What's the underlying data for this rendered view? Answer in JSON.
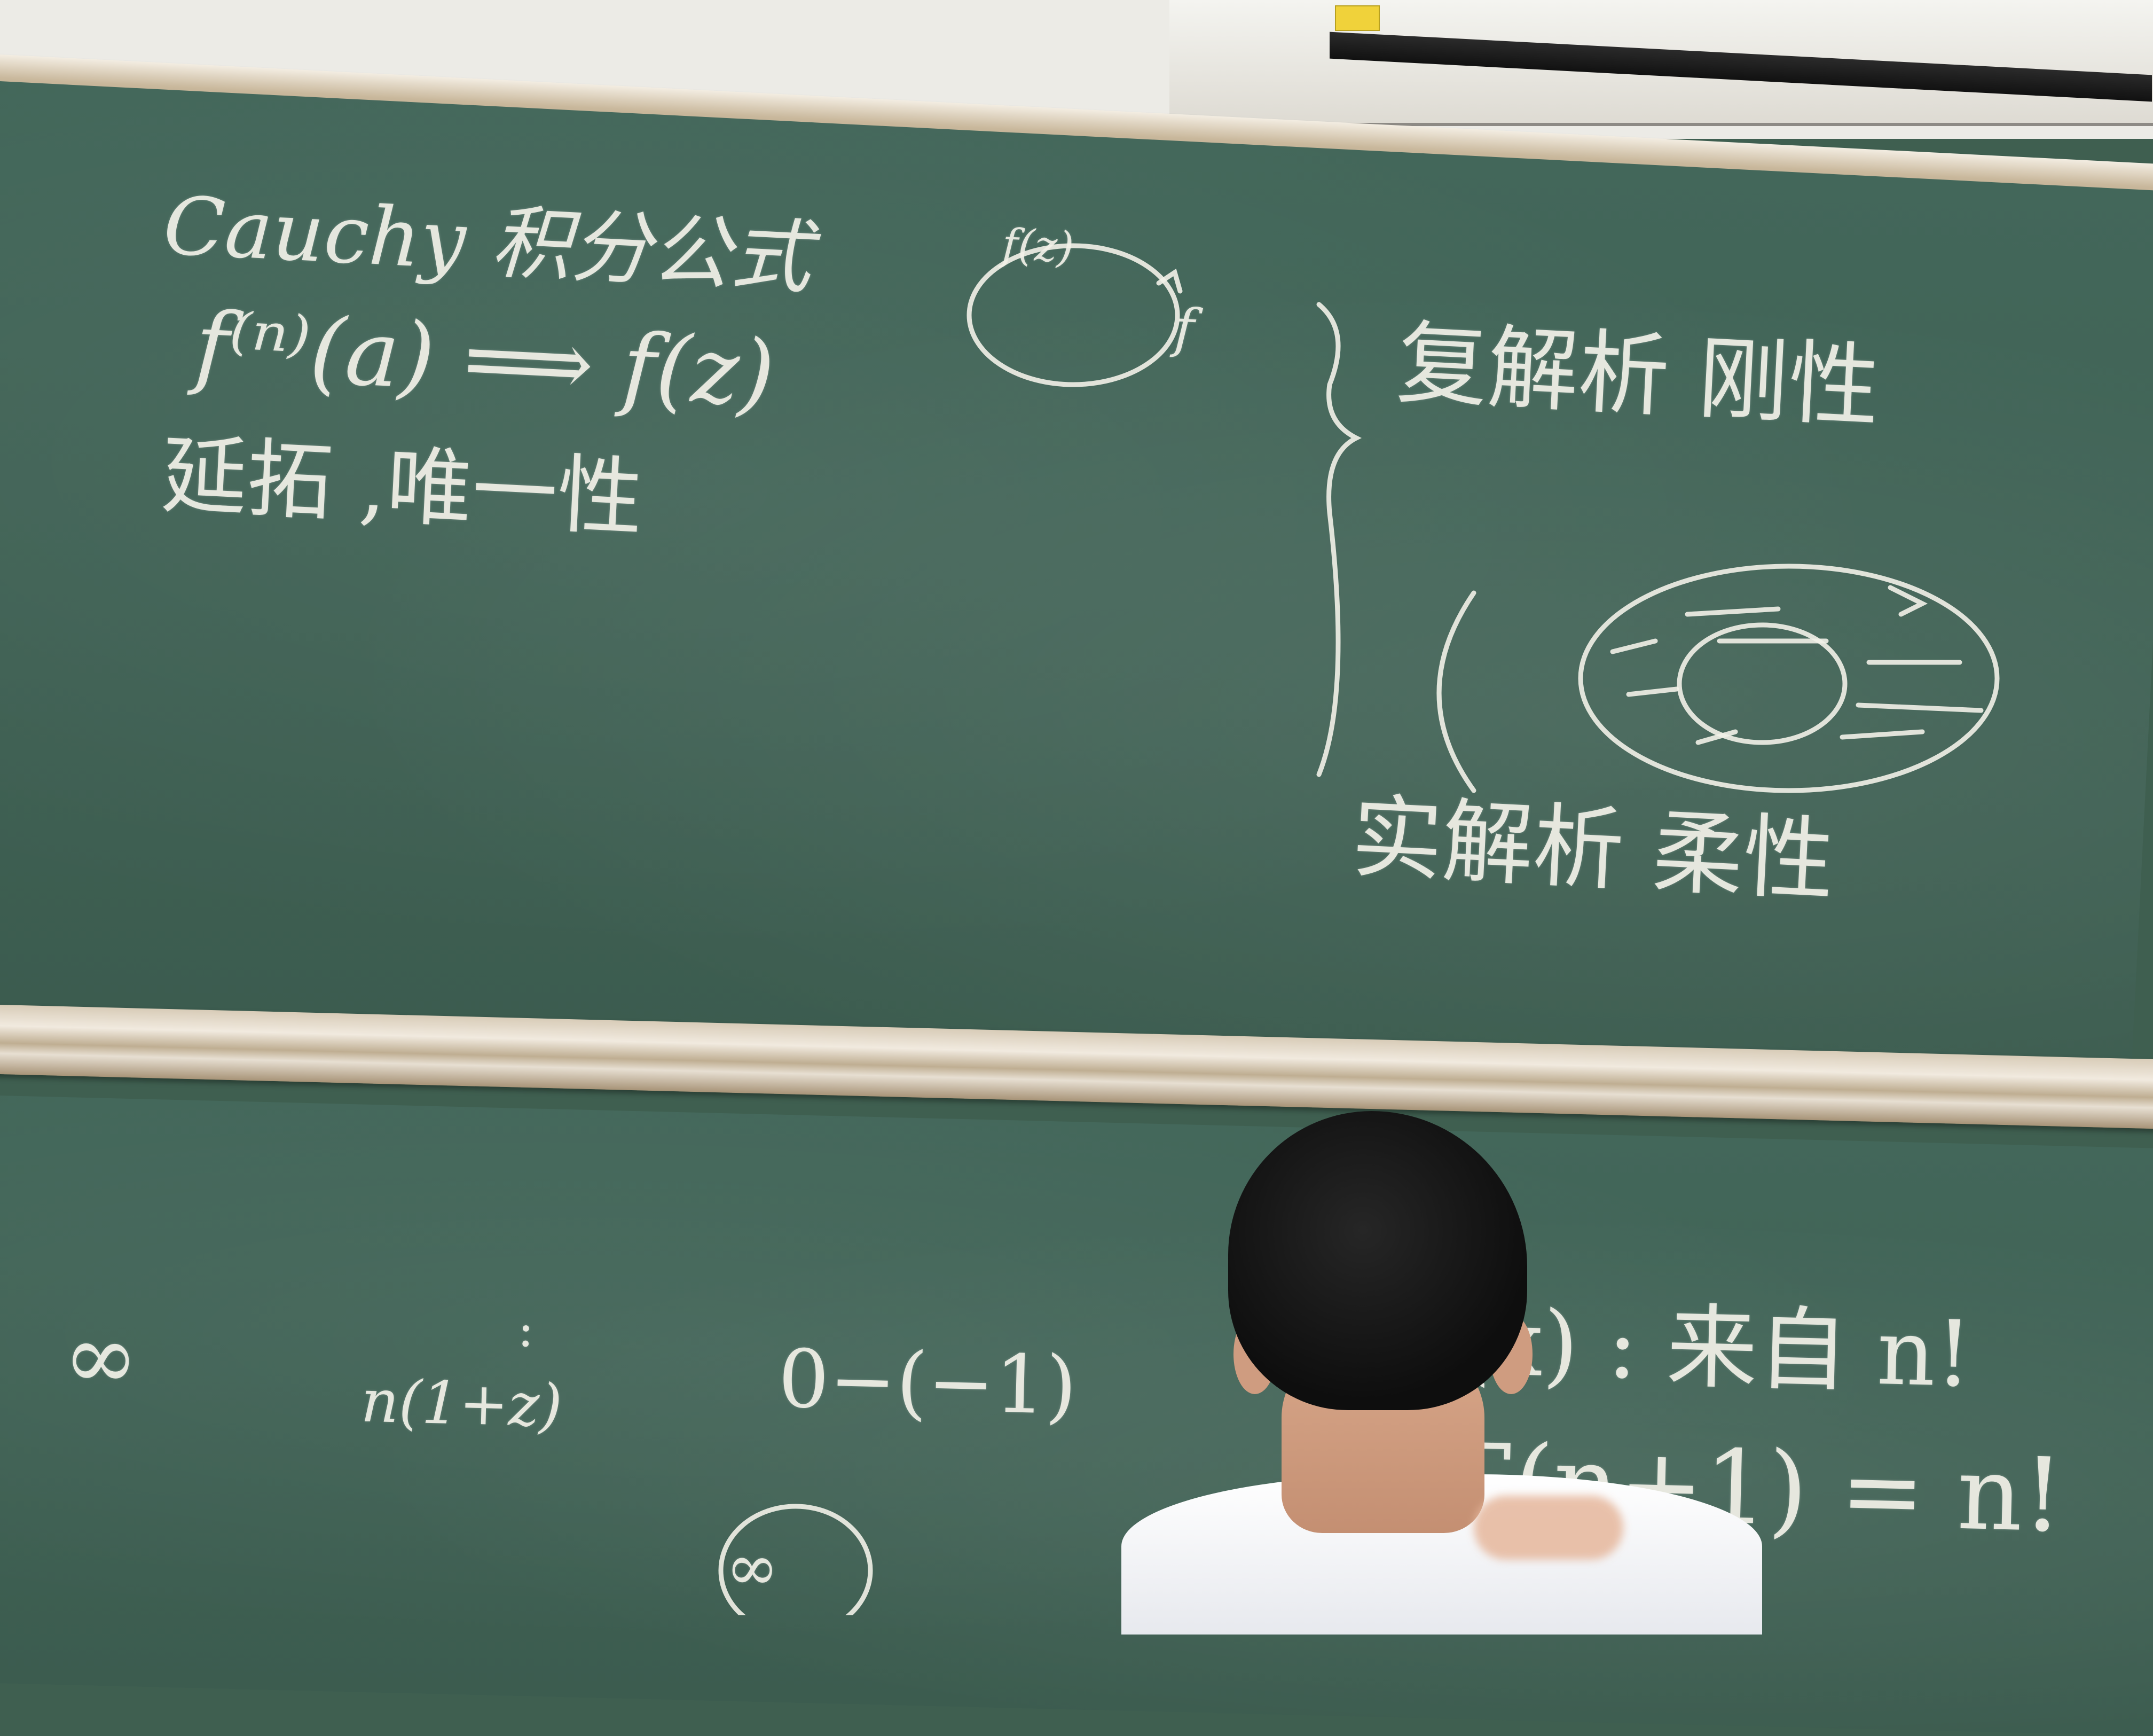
{
  "scene": {
    "colors": {
      "chalkboard": "#3f5f50",
      "chalk": "#f2f1e8",
      "frame": "#c9b89c",
      "wall": "#ecebe6"
    }
  },
  "upper_board": {
    "title": "Cauchy 积分公式",
    "formula": "f⁽ⁿ⁾(a) ⟹ f(z)",
    "continuation": "延拓 ,唯一性",
    "circle_label": "f(z)",
    "arrow_label": "f",
    "complex": "复解析 刚性",
    "real": "实解析 柔性"
  },
  "lower_board": {
    "infinity": "∞",
    "expr_small": "n(1+z)",
    "dots": ":",
    "zero_minus": "0−(−1)",
    "circled_infinity": "∞",
    "gamma_source": "Γ(x) : 来自 n!",
    "gamma_formula": "Γ(n+1) = n!"
  }
}
